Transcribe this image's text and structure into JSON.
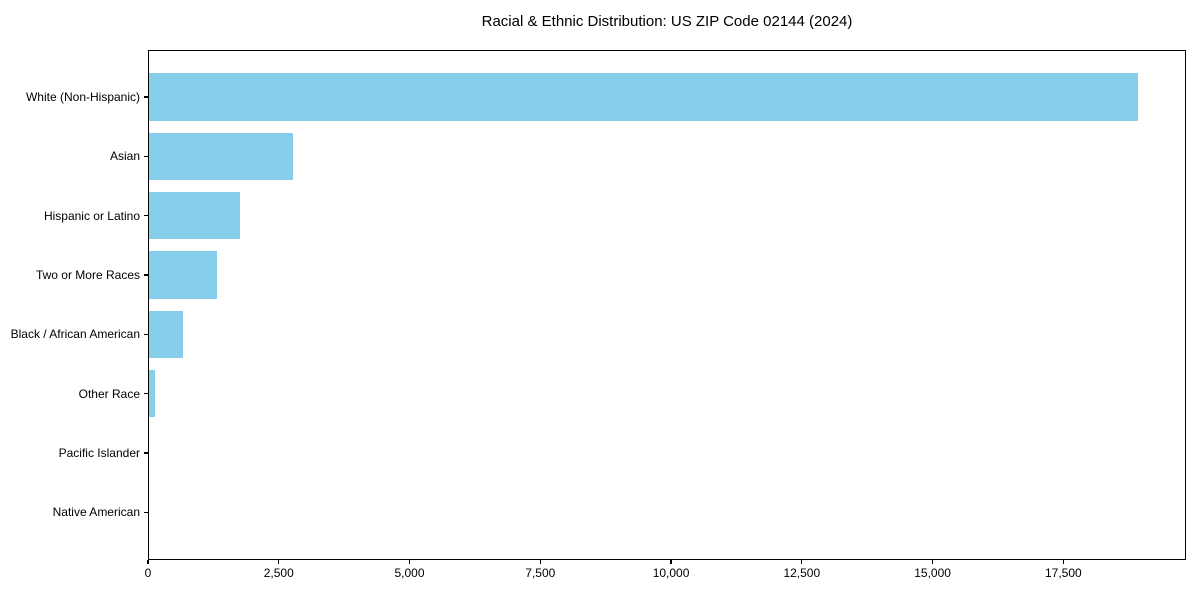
{
  "chart_data": {
    "type": "bar",
    "orientation": "horizontal",
    "title": "Racial & Ethnic Distribution: US ZIP Code 02144 (2024)",
    "categories": [
      "White (Non-Hispanic)",
      "Asian",
      "Hispanic or Latino",
      "Two or More Races",
      "Black / African American",
      "Other Race",
      "Pacific Islander",
      "Native American"
    ],
    "values": [
      18900,
      2750,
      1740,
      1300,
      650,
      110,
      0,
      0
    ],
    "xlabel": "",
    "ylabel": "",
    "xlim": [
      0,
      19845
    ],
    "x_ticks": [
      0,
      2500,
      5000,
      7500,
      10000,
      12500,
      15000,
      17500
    ],
    "x_tick_labels": [
      "0",
      "2,500",
      "5,000",
      "7,500",
      "10,000",
      "12,500",
      "15,000",
      "17,500"
    ],
    "bar_color": "#87ceeb",
    "axis_color": "#000000",
    "text_color": "#000000",
    "background_color": "#ffffff",
    "grid": false,
    "legend": null
  }
}
